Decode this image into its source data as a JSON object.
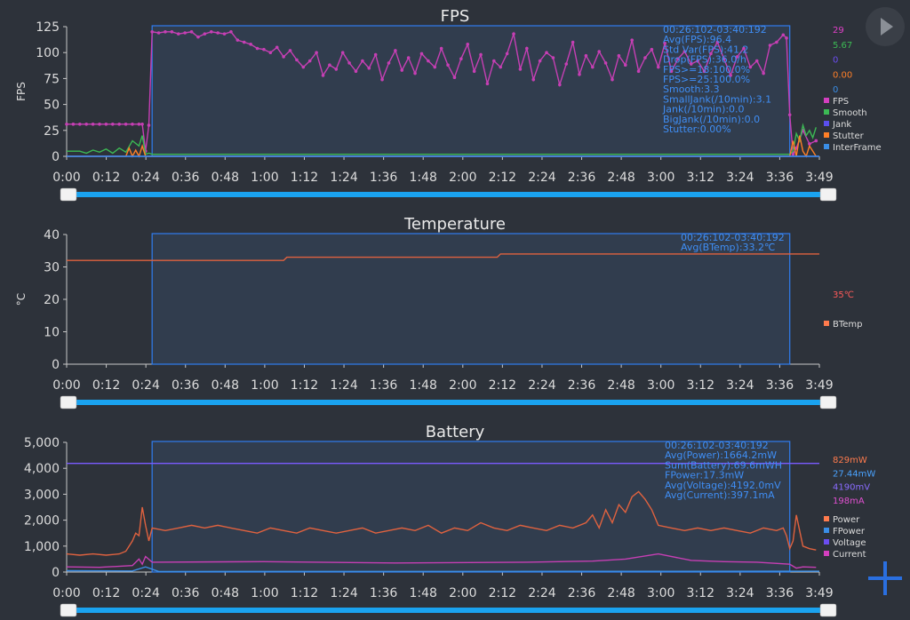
{
  "controls": {
    "play_icon": "play-icon",
    "add_icon": "plus-icon"
  },
  "chart_data": [
    {
      "type": "line",
      "title": "FPS",
      "ylabel": "FPS",
      "ylim": [
        0,
        125
      ],
      "yticks": [
        "0",
        "25",
        "50",
        "75",
        "100",
        "125"
      ],
      "xticks": [
        "0:00",
        "0:12",
        "0:24",
        "0:36",
        "0:48",
        "1:00",
        "1:12",
        "1:24",
        "1:36",
        "1:48",
        "2:00",
        "2:12",
        "2:24",
        "2:36",
        "2:48",
        "3:00",
        "3:12",
        "3:24",
        "3:36",
        "3:49"
      ],
      "xlim_seconds": [
        0,
        229
      ],
      "selection_seconds": [
        26,
        220
      ],
      "stats": [
        "00:26:102-03:40:192",
        "Avg(FPS):96.4",
        "Std Var(FPS):41.2",
        "Drop(FPS):36.0/h",
        "FPS>=18:100.0%",
        "FPS>=25:100.0%",
        "Smooth:3.3",
        "SmallJank(/10min):3.1",
        "Jank(/10min):0.0",
        "BigJank(/10min):0.0",
        "Stutter:0.00%"
      ],
      "current_values": [
        {
          "value": "29",
          "color": "#e040c8"
        },
        {
          "value": "5.67",
          "color": "#3cba54"
        },
        {
          "value": "0",
          "color": "#6b4df0"
        },
        {
          "value": "0.00",
          "color": "#ff7f27"
        },
        {
          "value": "0",
          "color": "#3a8ee6"
        }
      ],
      "legend": [
        {
          "name": "FPS",
          "color": "#d33fbf"
        },
        {
          "name": "Smooth",
          "color": "#3cba54"
        },
        {
          "name": "Jank",
          "color": "#5a4ff0"
        },
        {
          "name": "Stutter",
          "color": "#ff7f27"
        },
        {
          "name": "InterFrame",
          "color": "#3a8ee6"
        }
      ],
      "series": [
        {
          "name": "FPS",
          "color": "#c63fb4",
          "markers": true,
          "x": [
            0,
            2,
            4,
            6,
            8,
            10,
            12,
            14,
            16,
            18,
            20,
            22,
            23,
            24,
            25,
            26,
            28,
            30,
            32,
            34,
            36,
            38,
            40,
            42,
            44,
            46,
            48,
            50,
            52,
            54,
            56,
            58,
            60,
            62,
            64,
            66,
            68,
            70,
            72,
            74,
            76,
            78,
            80,
            82,
            84,
            86,
            88,
            90,
            92,
            94,
            96,
            98,
            100,
            102,
            104,
            106,
            108,
            110,
            112,
            114,
            116,
            118,
            120,
            122,
            124,
            126,
            128,
            130,
            132,
            134,
            136,
            138,
            140,
            142,
            144,
            146,
            148,
            150,
            152,
            154,
            156,
            158,
            160,
            162,
            164,
            166,
            168,
            170,
            172,
            174,
            176,
            178,
            180,
            182,
            184,
            186,
            188,
            190,
            192,
            194,
            196,
            198,
            200,
            202,
            204,
            206,
            208,
            210,
            212,
            214,
            216,
            218,
            219,
            220,
            221,
            222,
            224,
            226,
            228
          ],
          "y": [
            31,
            31,
            31,
            31,
            31,
            31,
            31,
            31,
            31,
            31,
            31,
            31,
            31,
            5,
            30,
            120,
            119,
            120,
            120,
            118,
            119,
            120,
            115,
            118,
            120,
            119,
            118,
            120,
            112,
            110,
            108,
            104,
            103,
            100,
            105,
            96,
            102,
            93,
            86,
            92,
            100,
            78,
            88,
            84,
            100,
            90,
            82,
            92,
            85,
            98,
            74,
            90,
            102,
            83,
            95,
            80,
            99,
            92,
            86,
            104,
            88,
            76,
            94,
            108,
            82,
            98,
            70,
            92,
            86,
            99,
            118,
            84,
            104,
            74,
            92,
            100,
            95,
            69,
            89,
            110,
            79,
            97,
            86,
            101,
            90,
            74,
            97,
            88,
            112,
            82,
            95,
            103,
            86,
            109,
            82,
            94,
            101,
            89,
            92,
            82,
            99,
            110,
            94,
            78,
            96,
            104,
            86,
            92,
            80,
            107,
            110,
            117,
            114,
            40,
            2,
            8,
            25,
            12,
            15
          ]
        },
        {
          "name": "Smooth",
          "color": "#3cba54",
          "markers": false,
          "x": [
            0,
            4,
            6,
            8,
            10,
            12,
            14,
            16,
            18,
            20,
            22,
            23,
            24,
            25,
            26,
            60,
            120,
            180,
            218,
            220,
            221,
            222,
            223,
            224,
            225,
            226,
            227,
            228
          ],
          "y": [
            5,
            5,
            3,
            6,
            4,
            7,
            3,
            8,
            4,
            15,
            10,
            20,
            2,
            3,
            2,
            2,
            2,
            2,
            2,
            2,
            5,
            22,
            15,
            30,
            20,
            25,
            18,
            28
          ]
        },
        {
          "name": "Stutter",
          "color": "#ff7f27",
          "markers": false,
          "x": [
            0,
            18,
            19,
            20,
            21,
            22,
            23,
            24,
            26,
            60,
            120,
            180,
            220,
            221,
            222,
            223,
            224,
            225,
            226,
            228
          ],
          "y": [
            0,
            0,
            8,
            0,
            6,
            0,
            10,
            0,
            0,
            0,
            0,
            0,
            0,
            15,
            0,
            20,
            5,
            0,
            10,
            0
          ]
        },
        {
          "name": "Jank",
          "color": "#5a4ff0",
          "markers": false,
          "x": [
            0,
            229
          ],
          "y": [
            0,
            0
          ]
        },
        {
          "name": "InterFrame",
          "color": "#3a8ee6",
          "markers": false,
          "x": [
            0,
            229
          ],
          "y": [
            0,
            0
          ]
        }
      ]
    },
    {
      "type": "line",
      "title": "Temperature",
      "ylabel": "°C",
      "ylim": [
        0,
        40
      ],
      "yticks": [
        "0",
        "10",
        "20",
        "30",
        "40"
      ],
      "xticks": [
        "0:00",
        "0:12",
        "0:24",
        "0:36",
        "0:48",
        "1:00",
        "1:12",
        "1:24",
        "1:36",
        "1:48",
        "2:00",
        "2:12",
        "2:24",
        "2:36",
        "2:48",
        "3:00",
        "3:12",
        "3:24",
        "3:36",
        "3:49"
      ],
      "xlim_seconds": [
        0,
        229
      ],
      "selection_seconds": [
        26,
        220
      ],
      "stats": [
        "00:26:102-03:40:192",
        "Avg(BTemp):33.2℃"
      ],
      "current_values": [
        {
          "value": "35℃",
          "color": "#ff5a5a"
        }
      ],
      "legend": [
        {
          "name": "BTemp",
          "color": "#ff7b4d"
        }
      ],
      "series": [
        {
          "name": "BTemp",
          "color": "#e0623f",
          "markers": false,
          "x": [
            0,
            66,
            67,
            131,
            132,
            229
          ],
          "y": [
            32,
            32,
            33,
            33,
            34,
            34
          ]
        }
      ]
    },
    {
      "type": "line",
      "title": "Battery",
      "ylabel": "",
      "ylim": [
        0,
        5000
      ],
      "yticks": [
        "0",
        "1,000",
        "2,000",
        "3,000",
        "4,000",
        "5,000"
      ],
      "xticks": [
        "0:00",
        "0:12",
        "0:24",
        "0:36",
        "0:48",
        "1:00",
        "1:12",
        "1:24",
        "1:36",
        "1:48",
        "2:00",
        "2:12",
        "2:24",
        "2:36",
        "2:48",
        "3:00",
        "3:12",
        "3:24",
        "3:36",
        "3:49"
      ],
      "xlim_seconds": [
        0,
        229
      ],
      "selection_seconds": [
        26,
        220
      ],
      "stats": [
        "00:26:102-03:40:192",
        "Avg(Power):1664.2mW",
        "Sum(Battery):69.6mWH",
        "FPower:17.3mW",
        "Avg(Voltage):4192.0mV",
        "Avg(Current):397.1mA"
      ],
      "current_values": [
        {
          "value": "829mW",
          "color": "#ff7b4d"
        },
        {
          "value": "27.44mW",
          "color": "#4aa3ff"
        },
        {
          "value": "4190mV",
          "color": "#8a6cff"
        },
        {
          "value": "198mA",
          "color": "#e050d0"
        }
      ],
      "legend": [
        {
          "name": "Power",
          "color": "#ff7b4d"
        },
        {
          "name": "FPower",
          "color": "#3a8ee6"
        },
        {
          "name": "Voltage",
          "color": "#6b4df0"
        },
        {
          "name": "Current",
          "color": "#d33fbf"
        }
      ],
      "series": [
        {
          "name": "Power",
          "color": "#e0623f",
          "markers": false,
          "x": [
            0,
            4,
            8,
            12,
            16,
            18,
            20,
            21,
            22,
            23,
            24,
            25,
            26,
            30,
            34,
            38,
            42,
            46,
            50,
            54,
            58,
            62,
            66,
            70,
            74,
            78,
            82,
            86,
            90,
            94,
            98,
            102,
            106,
            110,
            114,
            118,
            122,
            126,
            130,
            134,
            138,
            142,
            146,
            150,
            154,
            158,
            160,
            162,
            164,
            166,
            168,
            170,
            172,
            174,
            176,
            178,
            180,
            184,
            188,
            192,
            196,
            200,
            204,
            208,
            212,
            216,
            218,
            219,
            220,
            221,
            222,
            224,
            226,
            228
          ],
          "y": [
            700,
            650,
            700,
            650,
            700,
            800,
            1200,
            1500,
            1400,
            2500,
            1800,
            1200,
            1700,
            1600,
            1700,
            1800,
            1700,
            1800,
            1700,
            1600,
            1500,
            1700,
            1600,
            1500,
            1700,
            1600,
            1500,
            1600,
            1700,
            1500,
            1600,
            1700,
            1600,
            1800,
            1500,
            1700,
            1600,
            1900,
            1700,
            1600,
            1800,
            1700,
            1600,
            1800,
            1700,
            1900,
            2200,
            1700,
            2400,
            1900,
            2600,
            2300,
            2900,
            3100,
            2800,
            2400,
            1800,
            1700,
            1600,
            1700,
            1600,
            1700,
            1600,
            1500,
            1700,
            1600,
            1700,
            1400,
            900,
            1200,
            2200,
            1000,
            900,
            850
          ]
        },
        {
          "name": "Current",
          "color": "#c63fb4",
          "markers": false,
          "x": [
            0,
            10,
            20,
            22,
            23,
            24,
            26,
            60,
            100,
            140,
            160,
            170,
            180,
            190,
            200,
            210,
            220,
            222,
            224,
            228
          ],
          "y": [
            200,
            180,
            250,
            500,
            300,
            600,
            380,
            400,
            350,
            380,
            420,
            500,
            700,
            450,
            400,
            380,
            300,
            150,
            200,
            180
          ]
        },
        {
          "name": "Voltage",
          "color": "#7a5bff",
          "markers": false,
          "x": [
            0,
            229
          ],
          "y": [
            4190,
            4190
          ]
        },
        {
          "name": "FPower",
          "color": "#3a8ee6",
          "markers": false,
          "x": [
            0,
            20,
            24,
            28,
            229
          ],
          "y": [
            50,
            40,
            200,
            20,
            30
          ]
        }
      ]
    }
  ]
}
